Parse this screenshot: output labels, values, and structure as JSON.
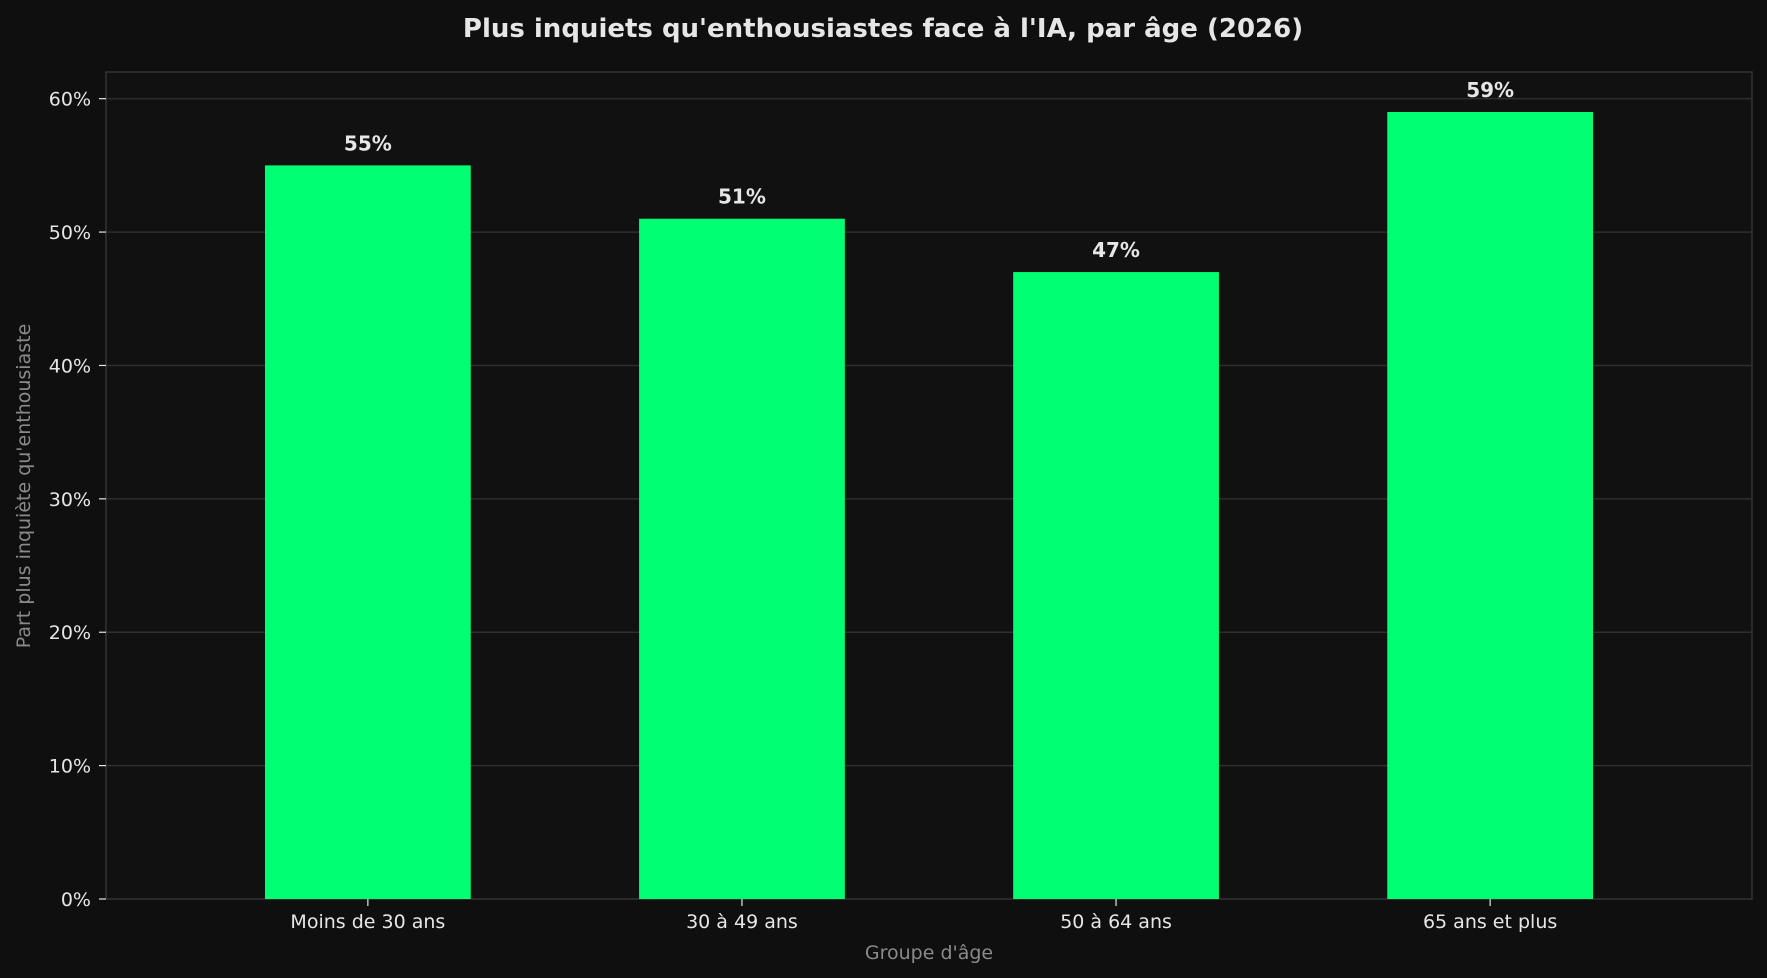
{
  "colors": {
    "background": "#0f0f0f",
    "plot_background": "#111111",
    "bar": "#00ff73",
    "grid": "#2e2e2e",
    "axis": "#333333",
    "title_text": "#e6e6e6",
    "tick_text": "#e6e6e6",
    "label_text": "#8a8a8a"
  },
  "chart_data": {
    "type": "bar",
    "title": "Plus inquiets qu'enthousiastes face à l'IA, par âge (2026)",
    "xlabel": "Groupe d'âge",
    "ylabel": "Part plus inquiète qu'enthousiaste",
    "categories": [
      "Moins de 30 ans",
      "30 à 49 ans",
      "50 à 64 ans",
      "65 ans et plus"
    ],
    "values": [
      55,
      51,
      47,
      59
    ],
    "data_labels": [
      "55%",
      "51%",
      "47%",
      "59%"
    ],
    "ylim": [
      0,
      62
    ],
    "yticks": [
      0,
      10,
      20,
      30,
      40,
      50,
      60
    ],
    "ytick_labels": [
      "0%",
      "10%",
      "20%",
      "30%",
      "40%",
      "50%",
      "60%"
    ],
    "grid": true,
    "legend": "none"
  }
}
